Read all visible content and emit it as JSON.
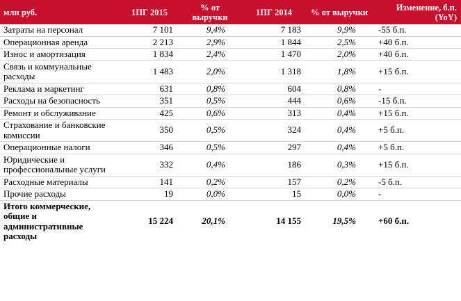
{
  "table": {
    "headers": {
      "label": "млн руб.",
      "h2015": "1ПГ 2015",
      "pct2015": "% от выручки",
      "h2014": "1ПГ 2014",
      "pct2014": "% от выручки",
      "change": "Изменение, б.п. (YoY)"
    },
    "rows": [
      {
        "label": "Затраты на персонал",
        "v2015": "7 101",
        "p2015": "9,4%",
        "v2014": "7 183",
        "p2014": "9,9%",
        "change": "-55 б.п."
      },
      {
        "label": "Операционная аренда",
        "v2015": "2 213",
        "p2015": "2,9%",
        "v2014": "1 844",
        "p2014": "2,5%",
        "change": "+40 б.п."
      },
      {
        "label": "Износ и амортизация",
        "v2015": "1 834",
        "p2015": "2,4%",
        "v2014": "1 470",
        "p2014": "2,0%",
        "change": "+40 б.п."
      },
      {
        "label": "Связь и коммунальные расходы",
        "v2015": "1 483",
        "p2015": "2,0%",
        "v2014": "1 318",
        "p2014": "1,8%",
        "change": "+15 б.п."
      },
      {
        "label": "Реклама и маркетинг",
        "v2015": "631",
        "p2015": "0,8%",
        "v2014": "604",
        "p2014": "0,8%",
        "change": "-"
      },
      {
        "label": "Расходы на безопасность",
        "v2015": "351",
        "p2015": "0,5%",
        "v2014": "444",
        "p2014": "0,6%",
        "change": "-15 б.п."
      },
      {
        "label": "Ремонт и обслуживание",
        "v2015": "425",
        "p2015": "0,6%",
        "v2014": "313",
        "p2014": "0,4%",
        "change": "+15 б.п."
      },
      {
        "label": "Страхование и банковские комиссии",
        "v2015": "350",
        "p2015": "0,5%",
        "v2014": "324",
        "p2014": "0,4%",
        "change": "+5 б.п."
      },
      {
        "label": "Операционные налоги",
        "v2015": "346",
        "p2015": "0,5%",
        "v2014": "297",
        "p2014": "0,4%",
        "change": "+5 б.п."
      },
      {
        "label": "Юридические и профессиональные услуги",
        "v2015": "332",
        "p2015": "0,4%",
        "v2014": "186",
        "p2014": "0,3%",
        "change": "+15 б.п."
      },
      {
        "label": "Расходные материалы",
        "v2015": "141",
        "p2015": "0,2%",
        "v2014": "157",
        "p2014": "0,2%",
        "change": "-5 б.п."
      },
      {
        "label": "Прочие расходы",
        "v2015": "19",
        "p2015": "0,0%",
        "v2014": "15",
        "p2014": "0,0%",
        "change": "-"
      },
      {
        "label": "Итого коммерческие, общие и административные расходы",
        "v2015": "15 224",
        "p2015": "20,1%",
        "v2014": "14 155",
        "p2014": "19,5%",
        "change": "+60 б.п."
      }
    ]
  }
}
